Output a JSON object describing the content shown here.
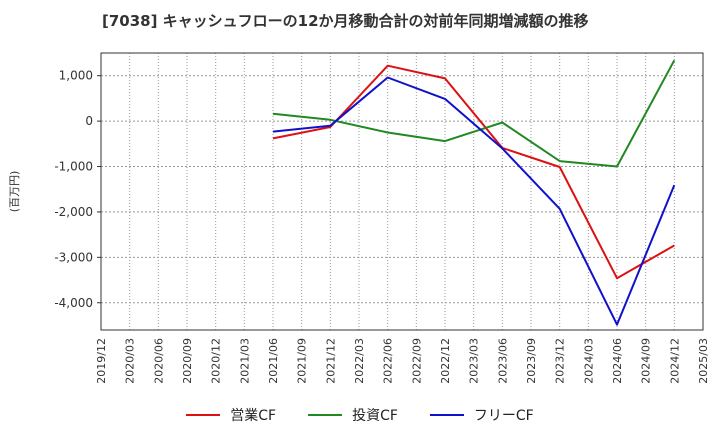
{
  "chart_data": {
    "type": "line",
    "title": "[7038]  キャッシュフローの12か月移動合計の対前年同期増減額の推移",
    "ylabel": "(百万円)",
    "xlabel": "",
    "ylim": [
      -4600,
      1500
    ],
    "yticks": [
      1000,
      0,
      -1000,
      -2000,
      -3000,
      -4000
    ],
    "ytick_labels": [
      "1,000",
      "0",
      "-1,000",
      "-2,000",
      "-3,000",
      "-4,000"
    ],
    "xtick_labels": [
      "2019/12",
      "2020/03",
      "2020/06",
      "2020/09",
      "2020/12",
      "2021/03",
      "2021/06",
      "2021/09",
      "2021/12",
      "2022/03",
      "2022/06",
      "2022/09",
      "2022/12",
      "2023/03",
      "2023/06",
      "2023/09",
      "2023/12",
      "2024/03",
      "2024/06",
      "2024/09",
      "2024/12",
      "2025/03"
    ],
    "grid": true,
    "legend": "bottom",
    "series": [
      {
        "name": "営業CF",
        "color": "#dd1111",
        "x": [
          "2021/06",
          "2021/12",
          "2022/06",
          "2022/12",
          "2023/06",
          "2023/12",
          "2024/06",
          "2024/12"
        ],
        "values": [
          -380,
          -130,
          1220,
          940,
          -590,
          -1010,
          -3460,
          -2740
        ]
      },
      {
        "name": "投資CF",
        "color": "#228822",
        "x": [
          "2021/06",
          "2021/12",
          "2022/06",
          "2022/12",
          "2023/06",
          "2023/12",
          "2024/06",
          "2024/12"
        ],
        "values": [
          160,
          30,
          -250,
          -440,
          -30,
          -880,
          -1000,
          1340
        ]
      },
      {
        "name": "フリーCF",
        "color": "#1111cc",
        "x": [
          "2021/06",
          "2021/12",
          "2022/06",
          "2022/12",
          "2023/06",
          "2023/12",
          "2024/06",
          "2024/12"
        ],
        "values": [
          -230,
          -100,
          960,
          490,
          -600,
          -1930,
          -4480,
          -1410
        ]
      }
    ]
  }
}
